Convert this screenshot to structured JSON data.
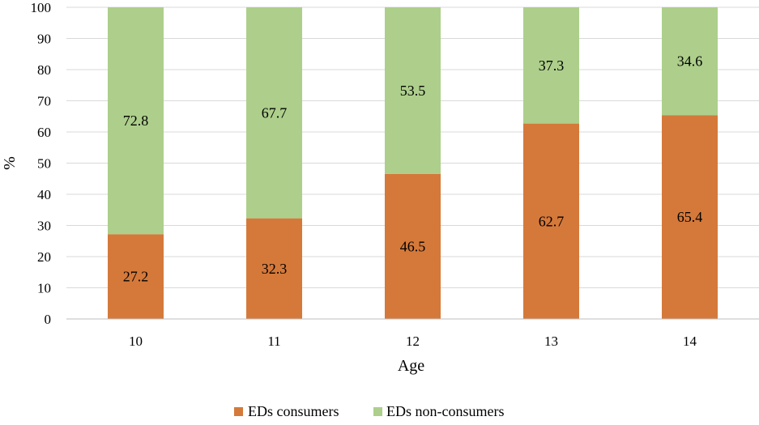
{
  "chart_data": {
    "type": "bar",
    "stacked": true,
    "categories": [
      "10",
      "11",
      "12",
      "13",
      "14"
    ],
    "series": [
      {
        "name": "EDs consumers",
        "color": "#D5793A",
        "values": [
          27.2,
          32.3,
          46.5,
          62.7,
          65.4
        ]
      },
      {
        "name": "EDs non-consumers",
        "color": "#ADCF8B",
        "values": [
          72.8,
          67.7,
          53.5,
          37.3,
          34.6
        ]
      }
    ],
    "title": "",
    "xlabel": "Age",
    "ylabel": "%",
    "ylim": [
      0,
      100
    ],
    "yticks": [
      "0",
      "10",
      "20",
      "30",
      "40",
      "50",
      "60",
      "70",
      "80",
      "90",
      "100"
    ],
    "grid": true,
    "legend": "bottom"
  }
}
